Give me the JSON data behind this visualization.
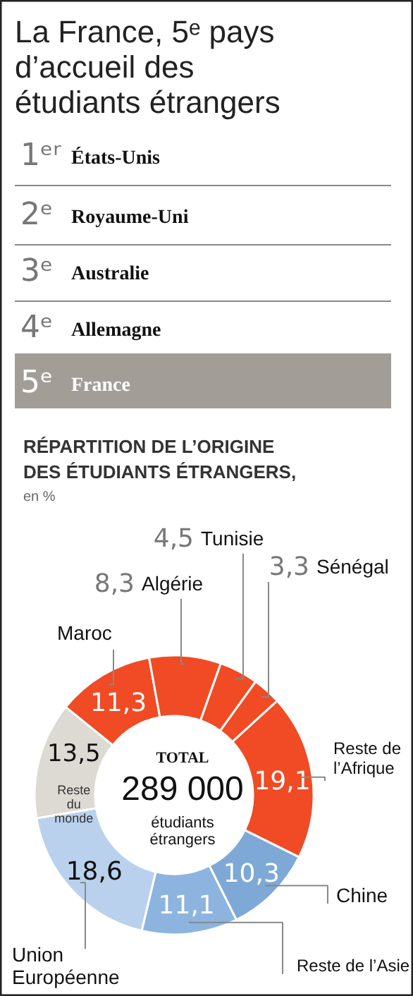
{
  "chart_data": {
    "type": "donut",
    "title": "La France, 5ᵉ pays d’accueil des étudiants étrangers",
    "subtitle": "RÉPARTITION DE L’ORIGINE DES ÉTUDIANTS ÉTRANGERS,",
    "annotations": [
      "1ᵉʳ États-Unis",
      "2ᵉ Royaume-Uni",
      "3ᵉ Australie",
      "4ᵉ Allemagne",
      "5ᵉ France",
      "en %",
      "TOTAL",
      "289 000",
      "étudiants étrangers"
    ],
    "categories": [
      "Maroc",
      "Algérie",
      "Tunisie",
      "Sénégal",
      "Reste de l’Afrique",
      "Chine",
      "Reste de l’Asie",
      "Union Européenne",
      "Reste du monde"
    ],
    "values": [
      11.3,
      8.3,
      4.5,
      3.3,
      19.1,
      10.3,
      11.1,
      18.6,
      13.5
    ],
    "value_labels": [
      "11,3",
      "8,3",
      "4,5",
      "3,3",
      "19,1",
      "10,3",
      "11,1",
      "18,6",
      "13,5"
    ],
    "colors": [
      "#f04b24",
      "#f04b24",
      "#f04b24",
      "#f04b24",
      "#f04b24",
      "#7ea9d6",
      "#8db4de",
      "#b9d1ec",
      "#dddad4"
    ]
  }
}
